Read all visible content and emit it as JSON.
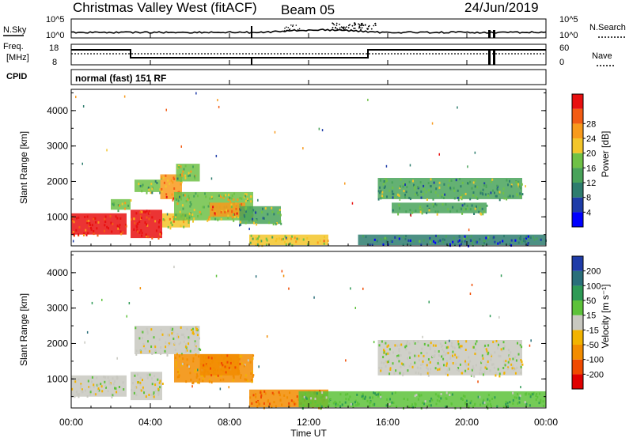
{
  "header": {
    "title": "Christmas Valley West (fitACF)",
    "beam": "Beam 05",
    "date": "24/Jun/2019"
  },
  "noise_panel": {
    "left_label": "N.Sky",
    "left_ticks": [
      "10^5",
      "10^0"
    ],
    "right_label": "N.Search",
    "right_ticks": [
      "10^5",
      "10^0"
    ]
  },
  "freq_panel": {
    "left_label_1": "Freq.",
    "left_label_2": "[MHz]",
    "left_ticks": [
      "18",
      "8"
    ],
    "right_label": "Nave",
    "right_ticks": [
      "60",
      "0"
    ]
  },
  "cpid_panel": {
    "label": "CPID",
    "mode": "normal (fast) 151 RF"
  },
  "x_axis": {
    "label": "Time UT",
    "ticks": [
      "00:00",
      "04:00",
      "08:00",
      "12:00",
      "16:00",
      "20:00",
      "00:00"
    ]
  },
  "colors": {
    "power": [
      "#0000ff",
      "#1e3ca8",
      "#2e7d6e",
      "#49a35a",
      "#6fc146",
      "#f3c52a",
      "#f89a1c",
      "#f25c14",
      "#e81010"
    ],
    "velocity": [
      "#e00000",
      "#f04a00",
      "#f28c00",
      "#f2b300",
      "#c8c8c0",
      "#5dc23a",
      "#2e9a55",
      "#2a6f7a",
      "#1f3ca8"
    ]
  },
  "chart_data": [
    {
      "type": "heatmap",
      "title": "",
      "xlabel": "Time UT",
      "ylabel": "Slant Range [km]",
      "xlim": [
        "00:00",
        "24:00"
      ],
      "ylim": [
        180,
        4600
      ],
      "yticks": [
        "1000",
        "2000",
        "3000",
        "4000"
      ],
      "colorbar": {
        "label": "Power [dB]",
        "ticks": [
          "4",
          "8",
          "12",
          "16",
          "20",
          "24",
          "28"
        ]
      },
      "regions": [
        {
          "t0": 0.0,
          "t1": 2.8,
          "r0": 500,
          "r1": 1100,
          "value_db": 28
        },
        {
          "t0": 2.0,
          "t1": 3.0,
          "r0": 1200,
          "r1": 1500,
          "value_db": 16
        },
        {
          "t0": 3.0,
          "t1": 4.6,
          "r0": 400,
          "r1": 1200,
          "value_db": 28
        },
        {
          "t0": 4.6,
          "t1": 6.0,
          "r0": 700,
          "r1": 1100,
          "value_db": 20
        },
        {
          "t0": 3.2,
          "t1": 4.5,
          "r0": 1700,
          "r1": 2050,
          "value_db": 14
        },
        {
          "t0": 4.5,
          "t1": 5.6,
          "r0": 1500,
          "r1": 2200,
          "value_db": 22
        },
        {
          "t0": 5.3,
          "t1": 6.5,
          "r0": 2000,
          "r1": 2500,
          "value_db": 16
        },
        {
          "t0": 5.2,
          "t1": 9.2,
          "r0": 900,
          "r1": 1700,
          "value_db": 16
        },
        {
          "t0": 7.0,
          "t1": 8.8,
          "r0": 1000,
          "r1": 1400,
          "value_db": 22
        },
        {
          "t0": 8.5,
          "t1": 10.6,
          "r0": 800,
          "r1": 1300,
          "value_db": 12
        },
        {
          "t0": 9.0,
          "t1": 13.0,
          "r0": 200,
          "r1": 500,
          "value_db": 18
        },
        {
          "t0": 15.5,
          "t1": 22.8,
          "r0": 1500,
          "r1": 2100,
          "value_db": 12
        },
        {
          "t0": 16.2,
          "t1": 21.0,
          "r0": 1100,
          "r1": 1400,
          "value_db": 12
        },
        {
          "t0": 14.5,
          "t1": 24.0,
          "r0": 200,
          "r1": 500,
          "value_db": 8
        }
      ]
    },
    {
      "type": "heatmap",
      "title": "",
      "xlabel": "Time UT",
      "ylabel": "Slant Range [km]",
      "xlim": [
        "00:00",
        "24:00"
      ],
      "ylim": [
        180,
        4600
      ],
      "yticks": [
        "1000",
        "2000",
        "3000",
        "4000"
      ],
      "colorbar": {
        "label": "Velocity [m s⁻¹]",
        "ticks": [
          "-200",
          "-100",
          "-50",
          "-15",
          "15",
          "50",
          "100",
          "200"
        ]
      },
      "regions": [
        {
          "t0": 0.0,
          "t1": 2.8,
          "r0": 500,
          "r1": 1100,
          "value_ms": 0
        },
        {
          "t0": 3.0,
          "t1": 4.6,
          "r0": 400,
          "r1": 1200,
          "value_ms": 0
        },
        {
          "t0": 3.2,
          "t1": 6.5,
          "r0": 1700,
          "r1": 2500,
          "value_ms": 0
        },
        {
          "t0": 5.2,
          "t1": 9.2,
          "r0": 900,
          "r1": 1700,
          "value_ms": -40
        },
        {
          "t0": 6.5,
          "t1": 8.5,
          "r0": 1100,
          "r1": 1700,
          "value_ms": -70
        },
        {
          "t0": 9.0,
          "t1": 13.0,
          "r0": 200,
          "r1": 700,
          "value_ms": -70
        },
        {
          "t0": 11.5,
          "t1": 24.0,
          "r0": 200,
          "r1": 650,
          "value_ms": 40
        },
        {
          "t0": 15.5,
          "t1": 22.8,
          "r0": 1100,
          "r1": 2100,
          "value_ms": 0
        }
      ]
    }
  ]
}
